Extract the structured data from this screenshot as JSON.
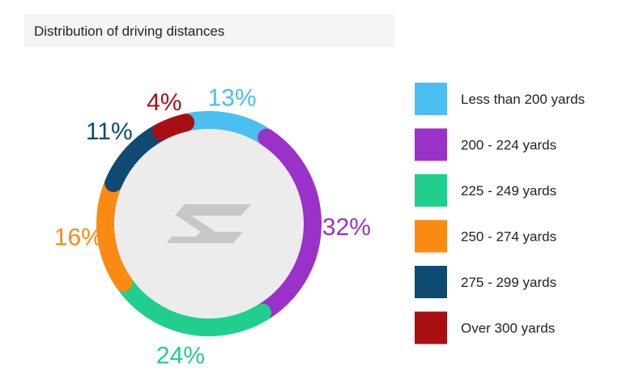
{
  "title": "Distribution of driving distances",
  "chart_data": {
    "type": "pie",
    "categories": [
      "Less than 200 yards",
      "200 - 224 yards",
      "225 - 249 yards",
      "250 - 274 yards",
      "275 - 299 yards",
      "Over 300 yards"
    ],
    "values": [
      13,
      32,
      24,
      16,
      11,
      4
    ],
    "labels": [
      "13%",
      "32%",
      "24%",
      "16%",
      "11%",
      "4%"
    ],
    "colors": [
      "#4bbfef",
      "#9a31c9",
      "#20cf8e",
      "#fb8a13",
      "#0f4a73",
      "#a90f12"
    ],
    "donut": true,
    "legend_position": "right"
  },
  "logo_icon": "stylized-s-logo"
}
